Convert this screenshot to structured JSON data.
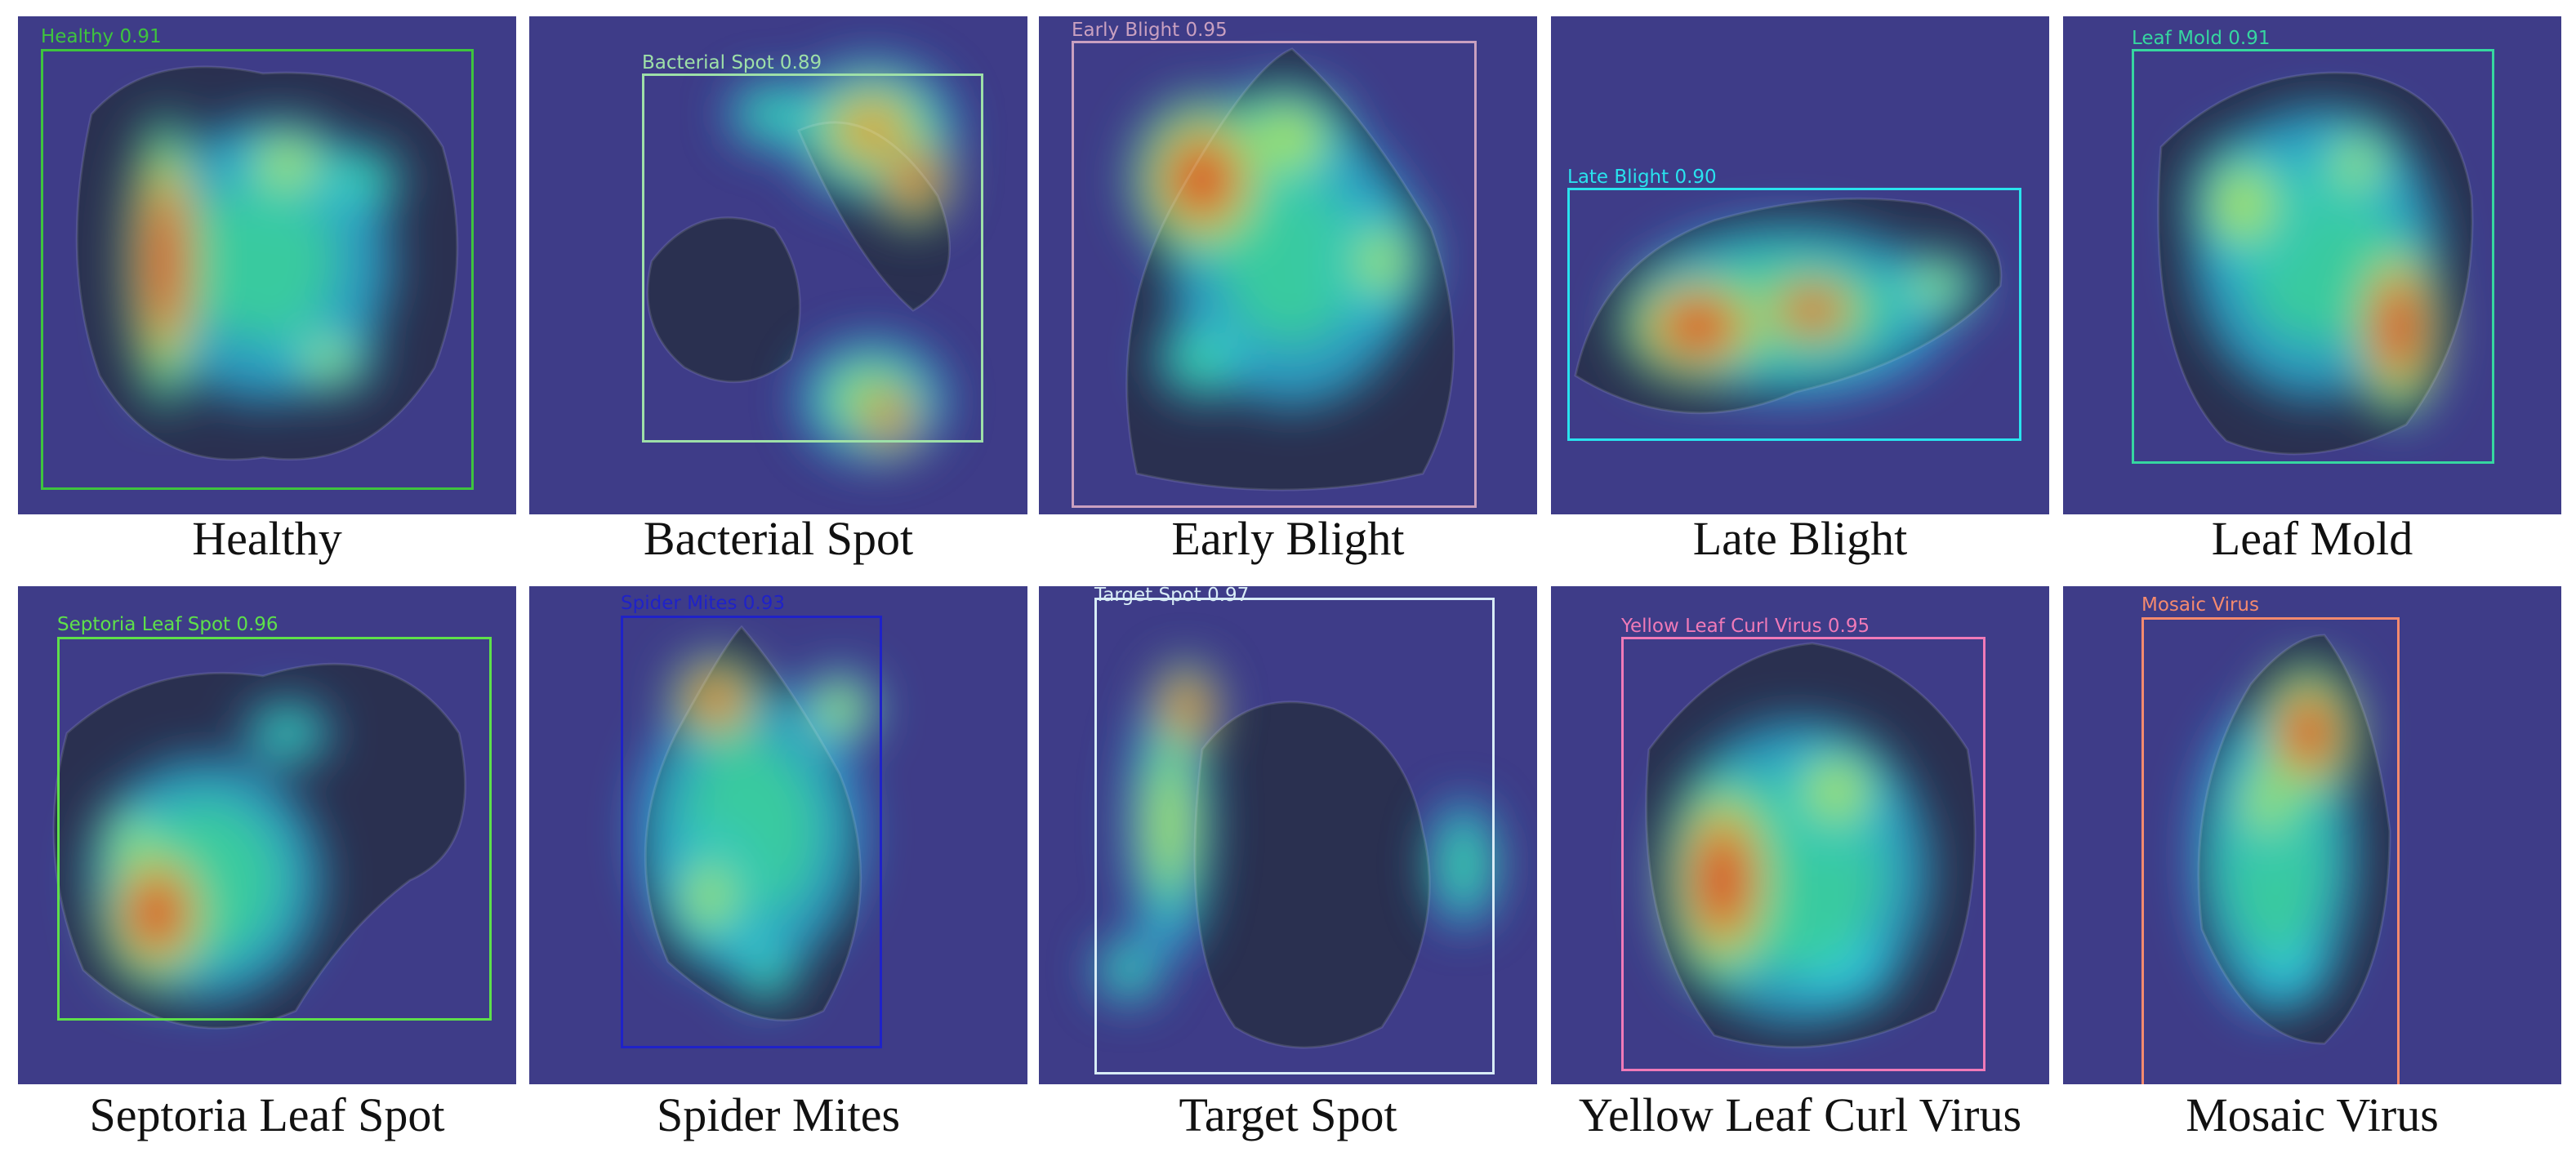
{
  "figure": {
    "panels": [
      {
        "caption": "Healthy",
        "detection_label": "Healthy 0.91",
        "box_color": "#3ec43e"
      },
      {
        "caption": "Bacterial Spot",
        "detection_label": "Bacterial Spot 0.89",
        "box_color": "#9ee0a8"
      },
      {
        "caption": "Early Blight",
        "detection_label": "Early Blight 0.95",
        "box_color": "#c9a0c0"
      },
      {
        "caption": "Late Blight",
        "detection_label": "Late Blight 0.90",
        "box_color": "#29e3ee"
      },
      {
        "caption": "Leaf Mold",
        "detection_label": "Leaf Mold 0.91",
        "box_color": "#36d7a0"
      },
      {
        "caption": "Septoria Leaf Spot",
        "detection_label": "Septoria Leaf Spot 0.96",
        "box_color": "#5ee04a"
      },
      {
        "caption": "Spider Mites",
        "detection_label": "Spider Mites 0.93",
        "box_color": "#1f22c8"
      },
      {
        "caption": "Target Spot",
        "detection_label": "Target Spot 0.97",
        "box_color": "#d8ecf6"
      },
      {
        "caption": "Yellow Leaf Curl Virus",
        "detection_label": "Yellow Leaf Curl Virus 0.95",
        "box_color": "#f07ab8"
      },
      {
        "caption": "Mosaic Virus",
        "detection_label": "Mosaic Virus",
        "box_color": "#f58a6e"
      }
    ]
  }
}
